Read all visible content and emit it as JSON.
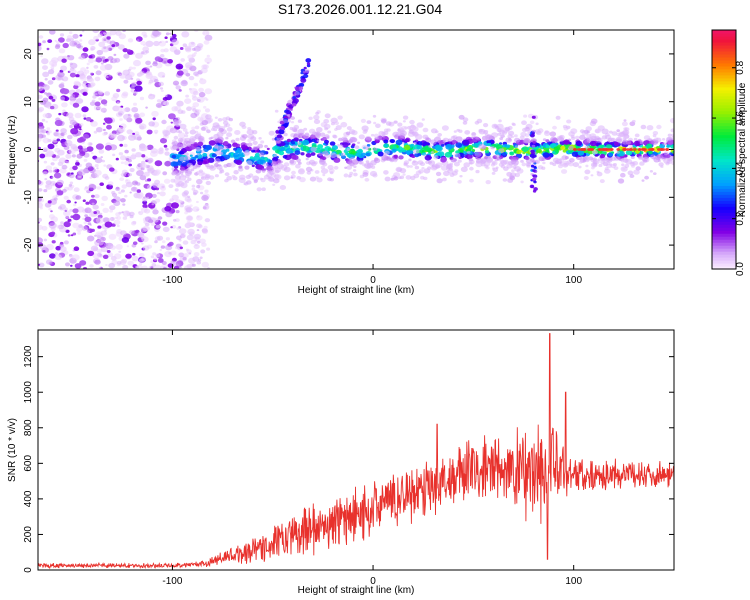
{
  "title": "S173.2026.001.12.21.G04",
  "chart_data": [
    {
      "type": "heatmap",
      "xlabel": "Height of straight line (km)",
      "ylabel": "Frequency (Hz)",
      "xlim": [
        -167,
        150
      ],
      "ylim": [
        -25,
        25
      ],
      "xticks": [
        -100,
        0,
        100
      ],
      "xtick_labels": [
        "-100",
        "0",
        "100"
      ],
      "yticks": [
        -20,
        -10,
        0,
        10,
        20
      ],
      "ytick_labels": [
        "-20",
        "-10",
        "0",
        "10",
        "20"
      ],
      "colorbar": {
        "label": "Normalized spectral amplitude",
        "range": [
          0,
          0.95
        ],
        "ticks": [
          0,
          0.2,
          0.4,
          0.6,
          0.8
        ],
        "tick_labels": [
          "0.0",
          "0.2",
          "0.4",
          "0.6",
          "0.8"
        ]
      },
      "features": [
        {
          "name": "noise-scatter",
          "x_range": [
            -167,
            -82
          ],
          "y_range": [
            -25,
            25
          ],
          "amplitude": 0.15
        },
        {
          "name": "main-ridge",
          "x_range": [
            -100,
            150
          ],
          "y_center": 0,
          "amplitude": 0.9
        },
        {
          "name": "upper-branch",
          "x_range": [
            -48,
            -32
          ],
          "y_range": [
            2,
            18
          ],
          "amplitude": 0.25
        },
        {
          "name": "spike-near-80",
          "x": 80,
          "y_range": [
            -9,
            7
          ],
          "amplitude": 0.3
        }
      ]
    },
    {
      "type": "line",
      "xlabel": "Height of straight line (km)",
      "ylabel": "SNR (10 * v/v)",
      "xlim": [
        -167,
        150
      ],
      "ylim": [
        0,
        1350
      ],
      "xticks": [
        -100,
        0,
        100
      ],
      "xtick_labels": [
        "-100",
        "0",
        "100"
      ],
      "yticks": [
        0,
        200,
        400,
        600,
        800,
        1000,
        1200
      ],
      "ytick_labels": [
        "0",
        "200",
        "400",
        "600",
        "800",
        "1000",
        "1200"
      ],
      "series": [
        {
          "name": "SNR",
          "color": "#e8312c",
          "envelope": [
            {
              "x": -167,
              "base": 25,
              "spread": 15
            },
            {
              "x": -100,
              "base": 25,
              "spread": 15
            },
            {
              "x": -85,
              "base": 35,
              "spread": 20
            },
            {
              "x": -70,
              "base": 80,
              "spread": 60
            },
            {
              "x": -50,
              "base": 150,
              "spread": 120
            },
            {
              "x": -30,
              "base": 230,
              "spread": 160
            },
            {
              "x": -10,
              "base": 300,
              "spread": 180
            },
            {
              "x": 10,
              "base": 400,
              "spread": 180
            },
            {
              "x": 30,
              "base": 480,
              "spread": 200
            },
            {
              "x": 50,
              "base": 560,
              "spread": 220
            },
            {
              "x": 70,
              "base": 560,
              "spread": 260
            },
            {
              "x": 85,
              "base": 550,
              "spread": 400
            },
            {
              "x": 100,
              "base": 540,
              "spread": 120
            },
            {
              "x": 150,
              "base": 540,
              "spread": 80
            }
          ],
          "peaks": [
            {
              "x": 88,
              "y": 1330
            },
            {
              "x": 96,
              "y": 1000
            },
            {
              "x": 32,
              "y": 820
            },
            {
              "x": 87,
              "y": 60
            }
          ]
        }
      ]
    }
  ]
}
